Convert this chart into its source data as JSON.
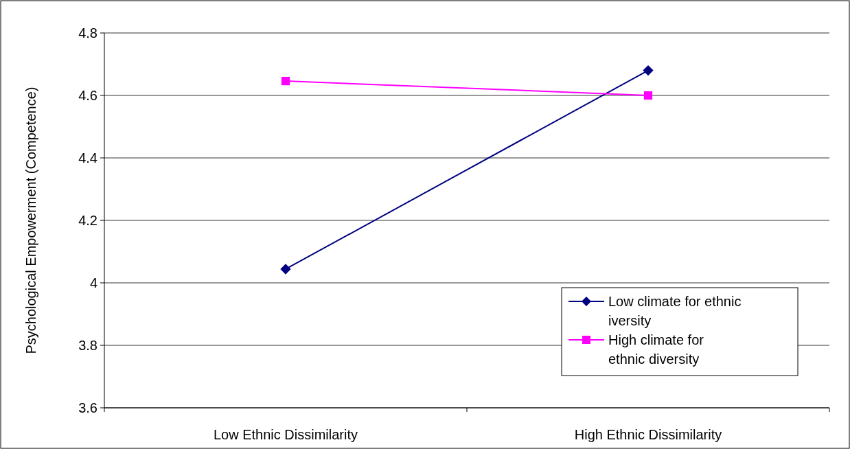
{
  "chart_data": {
    "type": "line",
    "ylabel": "Psychological Empowerment (Competence)",
    "categories": [
      "Low Ethnic Dissimilarity",
      "High Ethnic Dissimilarity"
    ],
    "series": [
      {
        "name": "Low climate for ethnic iversity",
        "color": "#000080",
        "values": [
          4.044,
          4.68
        ]
      },
      {
        "name": "High climate for ethnic diversity",
        "color": "#ff00ff",
        "values": [
          4.646,
          4.6
        ],
        "marker": "square"
      }
    ],
    "ylim": [
      3.6,
      4.8
    ],
    "yticks": [
      3.6,
      3.8,
      4,
      4.2,
      4.4,
      4.6,
      4.8
    ],
    "grid": "y",
    "legend": "bottom right",
    "line_style": "solid",
    "marker": "diamond"
  }
}
